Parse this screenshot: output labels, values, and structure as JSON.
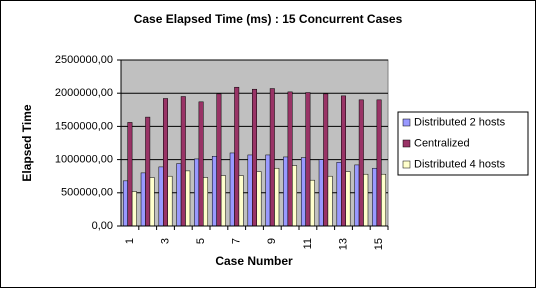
{
  "chart_data": {
    "type": "bar",
    "title": "Case Elapsed Time (ms) : 15 Concurrent Cases",
    "x_label": "Case Number",
    "y_label": "Elapsed Time",
    "categories": [
      "1",
      null,
      "3",
      null,
      "5",
      null,
      "7",
      null,
      "9",
      null,
      "11",
      null,
      "13",
      null,
      "15"
    ],
    "series": [
      {
        "name": "Distributed 2 hosts",
        "color": "#9999ff",
        "values": [
          680000,
          800000,
          890000,
          940000,
          1010000,
          1050000,
          1100000,
          1070000,
          1070000,
          1040000,
          1030000,
          1000000,
          960000,
          920000,
          870000
        ]
      },
      {
        "name": "Centralized",
        "color": "#993366",
        "values": [
          1560000,
          1640000,
          1920000,
          1950000,
          1870000,
          1990000,
          2090000,
          2060000,
          2070000,
          2020000,
          2010000,
          1990000,
          1960000,
          1900000,
          1900000
        ]
      },
      {
        "name": "Distributed 4 hosts",
        "color": "#ffffcc",
        "values": [
          520000,
          730000,
          750000,
          830000,
          730000,
          760000,
          760000,
          820000,
          870000,
          910000,
          690000,
          750000,
          820000,
          780000,
          780000
        ]
      }
    ],
    "ylim": [
      0,
      2500000
    ],
    "yticks": [
      {
        "value": 0,
        "label": "0,00"
      },
      {
        "value": 500000,
        "label": "500000,00"
      },
      {
        "value": 1000000,
        "label": "1000000,00"
      },
      {
        "value": 1500000,
        "label": "1500000,00"
      },
      {
        "value": 2000000,
        "label": "2000000,00"
      },
      {
        "value": 2500000,
        "label": "2500000,00"
      }
    ],
    "grid": true,
    "plot_background": "#c0c0c0",
    "legend_position": "right"
  }
}
